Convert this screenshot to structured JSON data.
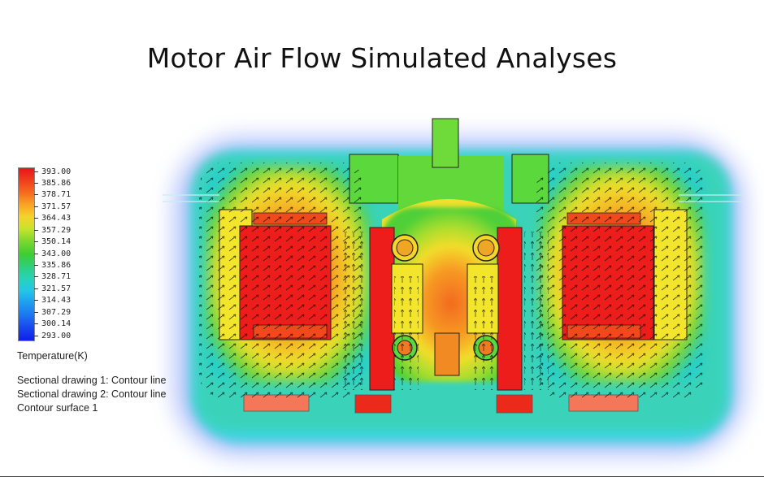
{
  "title": "Motor Air Flow Simulated Analyses",
  "legend": {
    "unit_label": "Temperature(K)",
    "max": 393.0,
    "min": 293.0,
    "ticks": [
      "393.00",
      "385.86",
      "378.71",
      "371.57",
      "364.43",
      "357.29",
      "350.14",
      "343.00",
      "335.86",
      "328.71",
      "321.57",
      "314.43",
      "307.29",
      "300.14",
      "293.00"
    ]
  },
  "notes": [
    "Sectional drawing 1: Contour line",
    "Sectional drawing 2: Contour line",
    "Contour surface 1"
  ],
  "colors": {
    "hot": "#e8141a",
    "warm_orange": "#f78a22",
    "yellow": "#f6e52c",
    "green": "#46d13a",
    "cyan": "#26d3d9",
    "blue_glow": "#4f7df2"
  }
}
